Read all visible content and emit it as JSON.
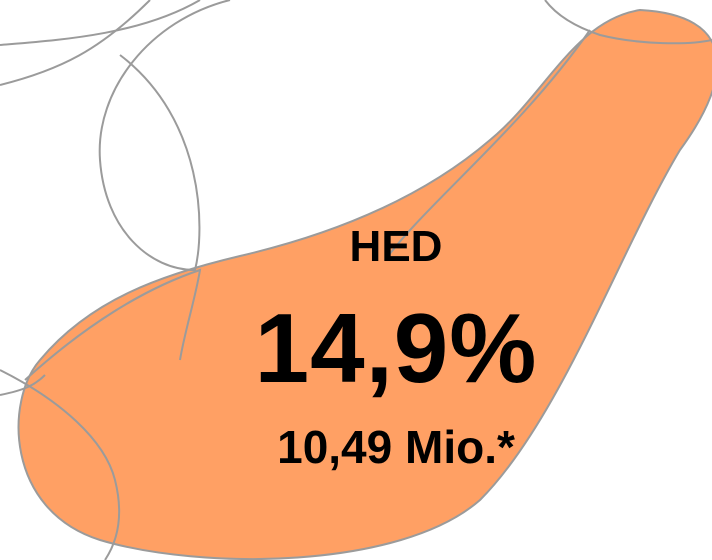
{
  "segment": {
    "name": "HED",
    "percent": "14,9%",
    "count": "10,49 Mio.*",
    "fill_color": "#FFA064",
    "outline_color": "#9b9b9b"
  }
}
